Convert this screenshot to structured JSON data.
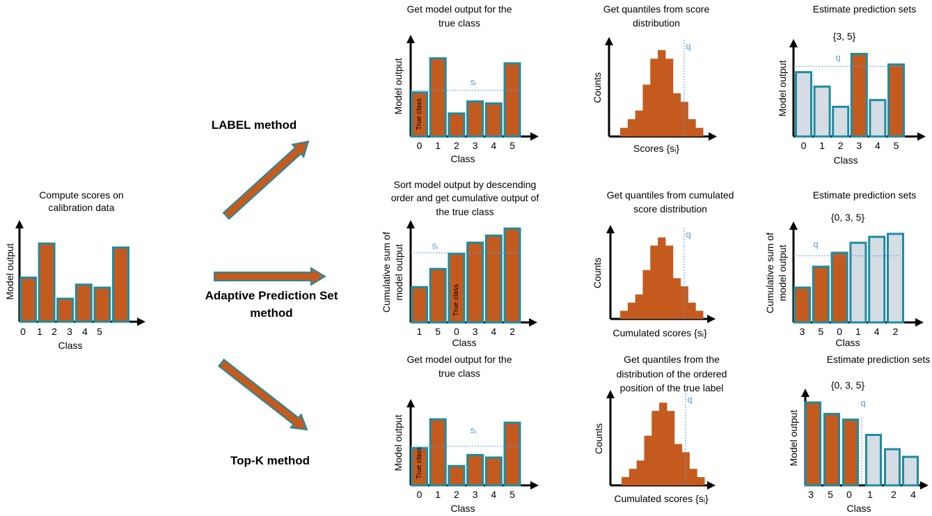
{
  "colors": {
    "bar_fill": "#c55a1f",
    "bar_border": "#1f8ba0",
    "excluded_fill": "#d6dce4",
    "threshold_line": "#5b9bd5",
    "axis": "#000000"
  },
  "calibration": {
    "title": [
      "Compute scores on",
      "calibration data"
    ],
    "ylabel": [
      "Model output"
    ],
    "xlabel": "Class",
    "categories": [
      "0",
      "1",
      "2",
      "3",
      "4",
      "5"
    ],
    "values": [
      0.45,
      0.79,
      0.24,
      0.38,
      0.35,
      0.75
    ]
  },
  "methods": [
    {
      "label": [
        "LABEL method"
      ],
      "output": {
        "title": [
          "Get model output for the",
          "true class"
        ],
        "ylabel": [
          "Model output"
        ],
        "xlabel": "Class",
        "categories": [
          "0",
          "1",
          "2",
          "3",
          "4",
          "5"
        ],
        "values": [
          0.45,
          0.79,
          0.24,
          0.36,
          0.34,
          0.74
        ],
        "true_class_index": 0,
        "true_class_label": "True class",
        "threshold": 0.46,
        "threshold_label": "sᵢ"
      },
      "quantile": {
        "title": [
          "Get quantiles from score",
          "distribution"
        ],
        "ylabel": [
          "Counts"
        ],
        "xlabel": "Scores {sᵢ}",
        "counts": [
          1,
          2,
          3,
          6,
          9,
          10,
          9,
          5,
          4,
          2,
          1
        ],
        "q_bin": 8.5,
        "q_label": "q"
      },
      "sets": {
        "title": [
          "Estimate prediction sets"
        ],
        "set": "{3, 5}",
        "ylabel": [
          "Model output"
        ],
        "xlabel": "Class",
        "categories": [
          "0",
          "1",
          "2",
          "3",
          "4",
          "5"
        ],
        "values": [
          0.68,
          0.53,
          0.32,
          0.87,
          0.39,
          0.76
        ],
        "included": [
          false,
          false,
          false,
          true,
          false,
          true
        ],
        "threshold": 0.73,
        "q_label": "q"
      }
    },
    {
      "label": [
        "Adaptive Prediction Set",
        "method"
      ],
      "output": {
        "title": [
          "Sort model output by descending",
          "order and get cumulative output of",
          "the true class"
        ],
        "ylabel": [
          "Cumulative sum of",
          "model output"
        ],
        "xlabel": "Class",
        "categories": [
          "1",
          "5",
          "0",
          "3",
          "4",
          "2"
        ],
        "values": [
          0.36,
          0.54,
          0.69,
          0.8,
          0.87,
          0.94
        ],
        "true_class_index": 2,
        "true_class_label": "True class",
        "threshold": 0.69,
        "threshold_label": "sᵢ"
      },
      "quantile": {
        "title": [
          "Get quantiles from cumulated",
          "score distribution"
        ],
        "ylabel": [
          "Counts"
        ],
        "xlabel": "Cumulated scores {sᵢ}",
        "counts": [
          1,
          2,
          3,
          6,
          9,
          10,
          9,
          5,
          4,
          2,
          1
        ],
        "q_bin": 8.5,
        "q_label": "q"
      },
      "sets": {
        "title": [
          "Estimate prediction sets"
        ],
        "set": "{0, 3, 5}",
        "ylabel": [
          "Cumulative sum of",
          "model output"
        ],
        "xlabel": "Class",
        "categories": [
          "3",
          "5",
          "0",
          "1",
          "4",
          "2"
        ],
        "values": [
          0.36,
          0.57,
          0.71,
          0.81,
          0.87,
          0.9
        ],
        "included": [
          true,
          true,
          true,
          false,
          false,
          false
        ],
        "threshold": 0.67,
        "q_label": "q"
      }
    },
    {
      "label": [
        "Top-K method"
      ],
      "output": {
        "title": [
          "Get model output for the",
          "true class"
        ],
        "ylabel": [
          "Model output"
        ],
        "xlabel": "Class",
        "categories": [
          "0",
          "1",
          "2",
          "3",
          "4",
          "5"
        ],
        "values": [
          0.45,
          0.79,
          0.24,
          0.37,
          0.34,
          0.75
        ],
        "true_class_index": 0,
        "true_class_label": "True class",
        "threshold": 0.46,
        "threshold_label": "sᵢ"
      },
      "quantile": {
        "title": [
          "Get quantiles from the",
          "distribution of the ordered",
          "position of the true label"
        ],
        "ylabel": [
          "Counts"
        ],
        "xlabel": "Cumulated scores {sᵢ}",
        "counts": [
          1,
          2,
          3,
          6,
          9,
          10,
          9,
          5,
          4,
          2,
          1
        ],
        "q_bin": 8.5,
        "q_label": "q"
      },
      "sets": {
        "title": [
          "Estimate prediction sets"
        ],
        "set": "{0, 3, 5}",
        "ylabel": [
          "Model output"
        ],
        "xlabel": "Class",
        "categories": [
          "3",
          "5",
          "0",
          "1",
          "2",
          "4"
        ],
        "values": [
          0.88,
          0.76,
          0.7,
          0.54,
          0.39,
          0.31
        ],
        "included": [
          true,
          true,
          true,
          false,
          false,
          false
        ],
        "q_label": "q"
      }
    }
  ]
}
